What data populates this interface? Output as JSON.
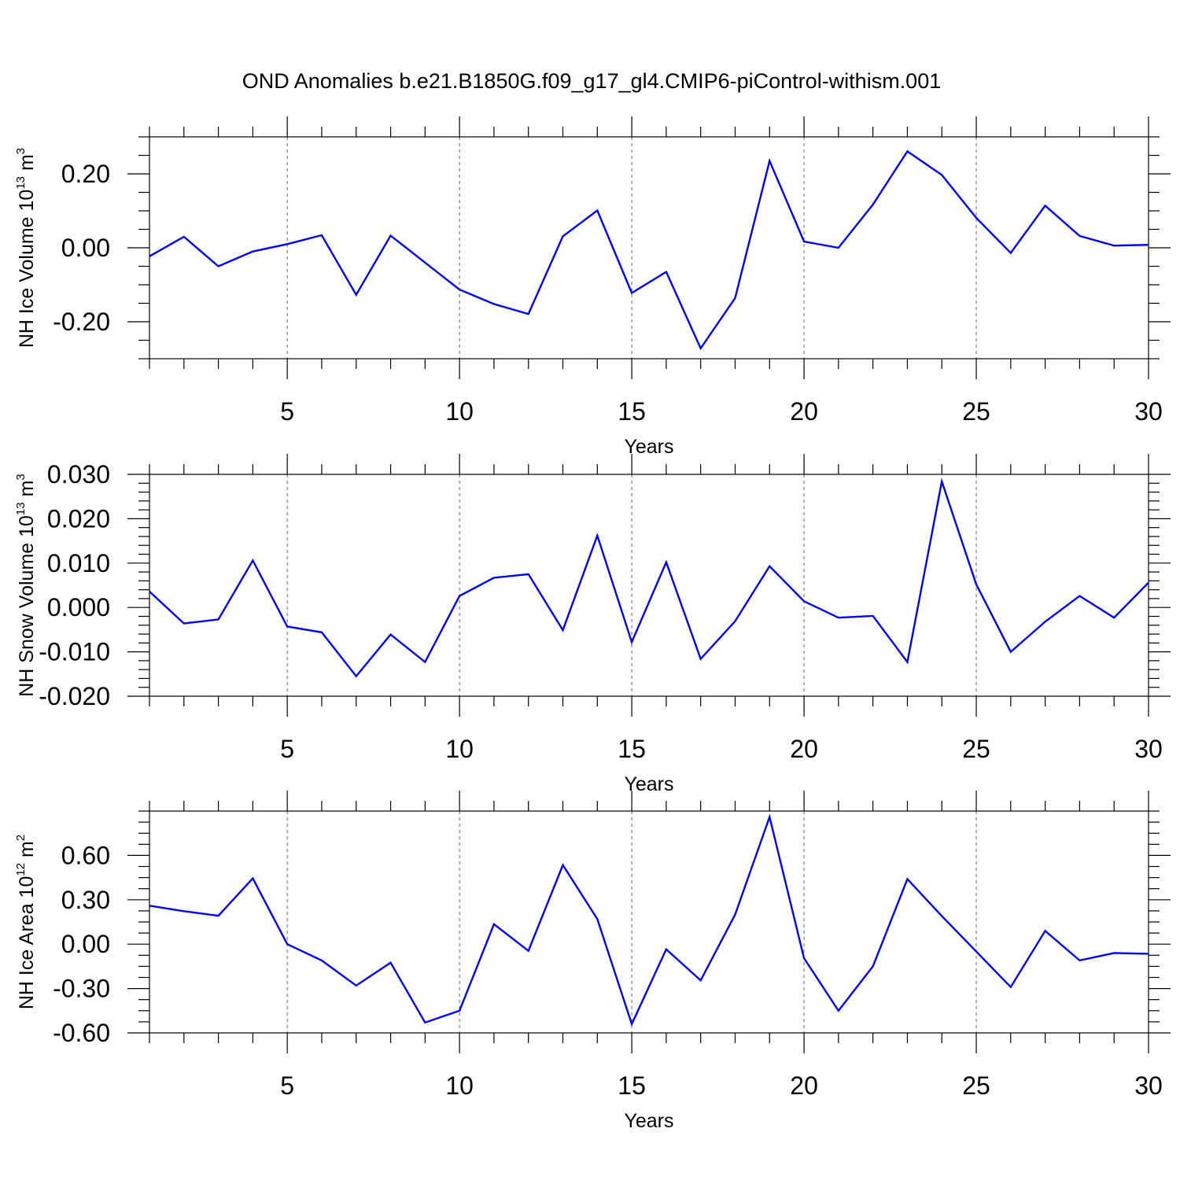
{
  "title": "OND Anomalies b.e21.B1850G.f09_g17_gl4.CMIP6-piControl-withism.001",
  "chart_data": [
    {
      "type": "line",
      "name": "ice-volume",
      "ylabel_main": "NH Ice Volume 10",
      "ylabel_exp": "13",
      "ylabel_unit": " m",
      "ylabel_unit_exp": "3",
      "xlabel": "Years",
      "xlim": [
        1,
        30
      ],
      "ylim": [
        -0.3,
        0.3
      ],
      "x_ticks": [
        5,
        10,
        15,
        20,
        25,
        30
      ],
      "x_tick_labels": [
        "5",
        "10",
        "15",
        "20",
        "25",
        "30"
      ],
      "y_ticks": [
        -0.2,
        0.0,
        0.2
      ],
      "y_tick_labels": [
        "-0.20",
        "0.00",
        "0.20"
      ],
      "y_minor_step": 0.05,
      "grid_x": [
        5,
        10,
        15,
        20,
        25
      ],
      "color": "#0000ff",
      "x": [
        1,
        2,
        3,
        4,
        5,
        6,
        7,
        8,
        9,
        10,
        11,
        12,
        13,
        14,
        15,
        16,
        17,
        18,
        19,
        20,
        21,
        22,
        23,
        24,
        25,
        26,
        27,
        28,
        29,
        30
      ],
      "values": [
        -0.023,
        0.03,
        -0.05,
        -0.01,
        0.01,
        0.034,
        -0.127,
        0.033,
        -0.04,
        -0.113,
        -0.152,
        -0.179,
        0.031,
        0.101,
        -0.122,
        -0.065,
        -0.272,
        -0.136,
        0.235,
        0.017,
        0.0,
        0.117,
        0.261,
        0.197,
        0.081,
        -0.014,
        0.114,
        0.032,
        0.006,
        0.008
      ]
    },
    {
      "type": "line",
      "name": "snow-volume",
      "ylabel_main": "NH Snow Volume 10",
      "ylabel_exp": "13",
      "ylabel_unit": " m",
      "ylabel_unit_exp": "3",
      "xlabel": "Years",
      "xlim": [
        1,
        30
      ],
      "ylim": [
        -0.02,
        0.03
      ],
      "x_ticks": [
        5,
        10,
        15,
        20,
        25,
        30
      ],
      "x_tick_labels": [
        "5",
        "10",
        "15",
        "20",
        "25",
        "30"
      ],
      "y_ticks": [
        -0.02,
        -0.01,
        0.0,
        0.01,
        0.02,
        0.03
      ],
      "y_tick_labels": [
        "-0.020",
        "-0.010",
        "0.000",
        "0.010",
        "0.020",
        "0.030"
      ],
      "y_minor_step": 0.002,
      "grid_x": [
        5,
        10,
        15,
        20,
        25
      ],
      "color": "#0000ff",
      "x": [
        1,
        2,
        3,
        4,
        5,
        6,
        7,
        8,
        9,
        10,
        11,
        12,
        13,
        14,
        15,
        16,
        17,
        18,
        19,
        20,
        21,
        22,
        23,
        24,
        25,
        26,
        27,
        28,
        29,
        30
      ],
      "values": [
        0.0036,
        -0.0036,
        -0.0027,
        0.0106,
        -0.0043,
        -0.0056,
        -0.0155,
        -0.0061,
        -0.0123,
        0.0026,
        0.0067,
        0.0075,
        -0.0051,
        0.0162,
        -0.0078,
        0.0102,
        -0.0116,
        -0.0031,
        0.0093,
        0.0014,
        -0.0023,
        -0.0019,
        -0.0123,
        0.0284,
        0.0052,
        -0.01,
        -0.0032,
        0.0026,
        -0.0023,
        0.0056
      ]
    },
    {
      "type": "line",
      "name": "ice-area",
      "ylabel_main": "NH Ice Area 10",
      "ylabel_exp": "12",
      "ylabel_unit": " m",
      "ylabel_unit_exp": "2",
      "xlabel": "Years",
      "xlim": [
        1,
        30
      ],
      "ylim": [
        -0.6,
        0.9
      ],
      "x_ticks": [
        5,
        10,
        15,
        20,
        25,
        30
      ],
      "x_tick_labels": [
        "5",
        "10",
        "15",
        "20",
        "25",
        "30"
      ],
      "y_ticks": [
        -0.6,
        -0.3,
        0.0,
        0.3,
        0.6
      ],
      "y_tick_labels": [
        "-0.60",
        "-0.30",
        "0.00",
        "0.30",
        "0.60"
      ],
      "y_minor_step": 0.075,
      "grid_x": [
        5,
        10,
        15,
        20,
        25
      ],
      "color": "#0000ff",
      "x": [
        1,
        2,
        3,
        4,
        5,
        6,
        7,
        8,
        9,
        10,
        11,
        12,
        13,
        14,
        15,
        16,
        17,
        18,
        19,
        20,
        21,
        22,
        23,
        24,
        25,
        26,
        27,
        28,
        29,
        30
      ],
      "values": [
        0.26,
        0.223,
        0.192,
        0.445,
        0.0,
        -0.11,
        -0.28,
        -0.125,
        -0.53,
        -0.45,
        0.135,
        -0.045,
        0.535,
        0.17,
        -0.54,
        -0.035,
        -0.245,
        0.2,
        0.86,
        -0.095,
        -0.45,
        -0.15,
        0.44,
        0.19,
        -0.05,
        -0.29,
        0.09,
        -0.11,
        -0.06,
        -0.065
      ]
    }
  ]
}
